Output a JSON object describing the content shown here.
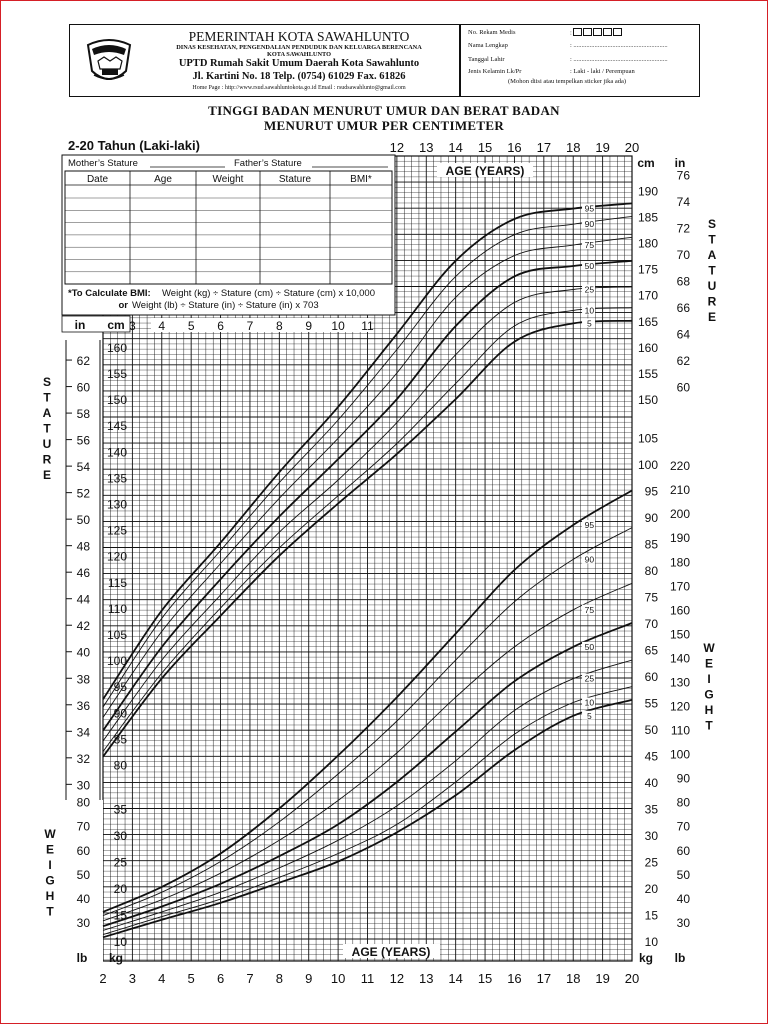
{
  "header": {
    "org_title": "PEMERINTAH KOTA SAWAHLUNTO",
    "org_line1": "DINAS KESEHATAN, PENGENDALIAN PENDUDUK DAN KELUARGA BERENCANA",
    "org_line2": "KOTA SAWAHLUNTO",
    "hospital": "UPTD Rumah Sakit Umum Daerah Kota Sawahlunto",
    "address": "Jl. Kartini No. 18 Telp. (0754) 61029 Fax. 61826",
    "homepage": "Home Page : http://www.rsud.sawahluntokota.go.id  Email : rsudsawahlunto@gmail.com"
  },
  "patient": {
    "rm_label": "No. Rekam Medis",
    "rm_value": ":",
    "name_label": "Nama Lengkap",
    "name_value": ": ..........................................................",
    "dob_label": "Tanggal Lahir",
    "dob_value": ": ..........................................................",
    "sex_label": "Jenis Kelamin Lk/Pr",
    "sex_value": ": Laki - laki / Perempuan",
    "note": "(Mohon diisi atau tempelkan sticker jika ada)"
  },
  "title_line1": "TINGGI BADAN MENURUT UMUR DAN BERAT BADAN",
  "title_line2": "MENURUT UMUR PER CENTIMETER",
  "age_range": "2-20 Tahun (Laki-laki)",
  "form": {
    "mother_label": "Mother’s Stature",
    "father_label": "Father’s Stature",
    "columns": [
      "Date",
      "Age",
      "Weight",
      "Stature",
      "BMI*"
    ],
    "bmi_note_1": "*To Calculate BMI:",
    "bmi_note_2": "Weight (kg) ÷ Stature (cm) ÷ Stature (cm) x 10,000",
    "bmi_note_3": "or",
    "bmi_note_4": "Weight (lb) ÷ Stature (in) ÷ Stature (in) x 703"
  },
  "labels": {
    "age_years": "AGE (YEARS)",
    "stature": "STATURE",
    "weight": "WEIGHT",
    "in": "in",
    "cm": "cm",
    "lb": "lb",
    "kg": "kg"
  },
  "colors": {
    "frame": "#d51f26",
    "ink": "#111111"
  },
  "chart_data": [
    {
      "type": "line",
      "title": "Stature-for-age",
      "xlabel": "AGE (YEARS)",
      "ylabel": "STATURE",
      "unit": "cm",
      "xlim": [
        2,
        20
      ],
      "ylim": [
        75,
        200
      ],
      "x_ticks": [
        2,
        3,
        4,
        5,
        6,
        7,
        8,
        9,
        10,
        11,
        12,
        13,
        14,
        15,
        16,
        17,
        18,
        19,
        20
      ],
      "x": [
        2,
        4,
        6,
        8,
        10,
        12,
        14,
        16,
        18,
        20
      ],
      "series": [
        {
          "name": "5",
          "values": [
            81.5,
            96.5,
            108.5,
            120.0,
            130.0,
            139.5,
            150.0,
            161.0,
            164.5,
            165.0
          ]
        },
        {
          "name": "10",
          "values": [
            82.5,
            97.5,
            110.0,
            121.5,
            131.5,
            141.5,
            153.0,
            164.0,
            167.0,
            167.5
          ]
        },
        {
          "name": "25",
          "values": [
            84.5,
            100.0,
            112.5,
            124.5,
            134.5,
            145.5,
            158.5,
            168.5,
            171.0,
            171.5
          ]
        },
        {
          "name": "50",
          "values": [
            86.5,
            102.5,
            115.5,
            127.5,
            138.5,
            150.0,
            164.0,
            173.5,
            175.5,
            176.5
          ]
        },
        {
          "name": "75",
          "values": [
            89.0,
            105.5,
            118.5,
            131.0,
            142.5,
            155.0,
            169.5,
            177.5,
            179.5,
            181.0
          ]
        },
        {
          "name": "90",
          "values": [
            91.0,
            108.0,
            121.0,
            134.0,
            146.0,
            159.5,
            173.5,
            181.5,
            183.5,
            185.0
          ]
        },
        {
          "name": "95",
          "values": [
            92.5,
            109.5,
            122.5,
            136.0,
            148.5,
            162.5,
            176.5,
            184.5,
            186.5,
            187.5
          ]
        }
      ]
    },
    {
      "type": "line",
      "title": "Weight-for-age",
      "xlabel": "AGE (YEARS)",
      "ylabel": "WEIGHT",
      "unit": "kg",
      "xlim": [
        2,
        20
      ],
      "ylim": [
        10,
        105
      ],
      "x": [
        2,
        4,
        6,
        8,
        10,
        12,
        14,
        16,
        18,
        20
      ],
      "series": [
        {
          "name": "5",
          "values": [
            10.7,
            14.0,
            17.2,
            21.0,
            25.0,
            30.5,
            37.5,
            46.0,
            52.5,
            55.5
          ]
        },
        {
          "name": "10",
          "values": [
            11.2,
            14.6,
            17.9,
            22.0,
            26.5,
            32.0,
            40.0,
            49.0,
            55.0,
            58.0
          ]
        },
        {
          "name": "25",
          "values": [
            12.0,
            15.5,
            19.2,
            23.8,
            29.0,
            35.5,
            44.0,
            53.5,
            59.5,
            63.0
          ]
        },
        {
          "name": "50",
          "values": [
            12.8,
            16.5,
            20.8,
            26.0,
            32.0,
            40.0,
            49.5,
            59.0,
            65.5,
            70.0
          ]
        },
        {
          "name": "75",
          "values": [
            13.8,
            17.8,
            22.8,
            29.0,
            36.5,
            45.5,
            56.0,
            65.5,
            72.5,
            77.5
          ]
        },
        {
          "name": "90",
          "values": [
            14.8,
            19.2,
            25.0,
            32.5,
            41.5,
            51.5,
            63.0,
            74.0,
            82.0,
            88.0
          ]
        },
        {
          "name": "95",
          "values": [
            15.5,
            20.2,
            26.5,
            35.0,
            45.0,
            56.0,
            68.0,
            80.0,
            88.5,
            95.0
          ]
        }
      ]
    }
  ]
}
